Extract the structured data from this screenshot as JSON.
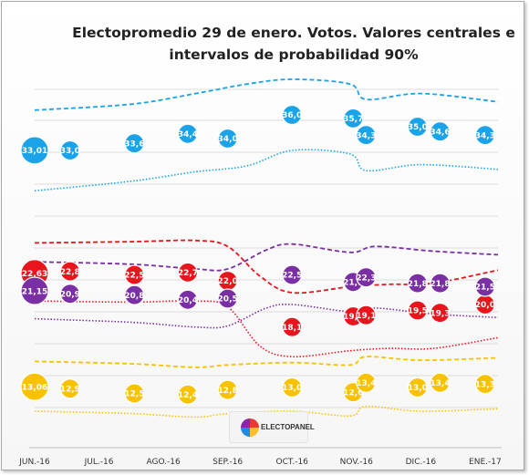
{
  "chart_data": {
    "type": "line",
    "title": "Electopromedio 29 de enero. Votos. Valores centrales e intervalos de probabilidad 90%",
    "xlabel": "",
    "ylabel": "",
    "ylim": [
      8,
      40
    ],
    "grid": true,
    "x_ticks": [
      "JUN.-16",
      "JUL.-16",
      "AGO.-16",
      "SEP.-16",
      "OCT.-16",
      "NOV.-16",
      "DIC.-16",
      "ENE.-17"
    ],
    "x_range": [
      0,
      7.2
    ],
    "series": [
      {
        "color": "#1aa3e8",
        "points": [
          {
            "x": 0.0,
            "y": 33.01,
            "label": "33,01"
          },
          {
            "x": 0.55,
            "y": 33.0,
            "label": "33,0"
          },
          {
            "x": 1.55,
            "y": 33.6,
            "label": "33,6"
          },
          {
            "x": 2.38,
            "y": 34.4,
            "label": "34,4"
          },
          {
            "x": 3.0,
            "y": 34.0,
            "label": "34,0"
          },
          {
            "x": 4.0,
            "y": 36.0,
            "label": "36,0"
          },
          {
            "x": 4.95,
            "y": 35.7,
            "label": "35,7"
          },
          {
            "x": 5.15,
            "y": 34.3,
            "label": "34,3"
          },
          {
            "x": 5.95,
            "y": 35.0,
            "label": "35,0"
          },
          {
            "x": 6.3,
            "y": 34.6,
            "label": "34,6"
          },
          {
            "x": 7.0,
            "y": 34.3,
            "label": "34,3"
          }
        ],
        "upper": [
          [
            0,
            36.4
          ],
          [
            1.5,
            36.9
          ],
          [
            2.5,
            37.8
          ],
          [
            3.3,
            38.6
          ],
          [
            4.0,
            39.0
          ],
          [
            4.9,
            38.6
          ],
          [
            5.15,
            37.3
          ],
          [
            6.0,
            37.8
          ],
          [
            7.2,
            37.1
          ]
        ],
        "lower": [
          [
            0,
            29.6
          ],
          [
            1.5,
            30.4
          ],
          [
            2.5,
            31.2
          ],
          [
            3.3,
            31.7
          ],
          [
            4.0,
            33.0
          ],
          [
            4.9,
            32.7
          ],
          [
            5.15,
            31.3
          ],
          [
            6.0,
            31.8
          ],
          [
            7.2,
            31.4
          ]
        ]
      },
      {
        "color": "#e8161c",
        "points": [
          {
            "x": 0.0,
            "y": 22.63,
            "label": "22,63"
          },
          {
            "x": 0.55,
            "y": 22.8,
            "label": "22,8"
          },
          {
            "x": 1.55,
            "y": 22.5,
            "label": "22,5"
          },
          {
            "x": 2.38,
            "y": 22.7,
            "label": "22,7"
          },
          {
            "x": 3.0,
            "y": 22.0,
            "label": "22,0"
          },
          {
            "x": 4.0,
            "y": 18.1,
            "label": "18,1"
          },
          {
            "x": 4.95,
            "y": 19.0,
            "label": "19,0"
          },
          {
            "x": 5.15,
            "y": 19.1,
            "label": "19,1"
          },
          {
            "x": 5.95,
            "y": 19.5,
            "label": "19,5"
          },
          {
            "x": 6.3,
            "y": 19.3,
            "label": "19,3"
          },
          {
            "x": 7.0,
            "y": 20.0,
            "label": "20,0"
          }
        ],
        "upper": [
          [
            0,
            25.2
          ],
          [
            1.5,
            25.3
          ],
          [
            2.5,
            25.4
          ],
          [
            3.0,
            24.9
          ],
          [
            3.5,
            22.4
          ],
          [
            4.0,
            21.0
          ],
          [
            4.9,
            21.5
          ],
          [
            5.5,
            21.7
          ],
          [
            6.2,
            21.8
          ],
          [
            7.2,
            22.9
          ]
        ],
        "lower": [
          [
            0,
            20.3
          ],
          [
            1.5,
            20.2
          ],
          [
            2.5,
            20.3
          ],
          [
            3.0,
            19.8
          ],
          [
            3.5,
            16.5
          ],
          [
            4.0,
            15.6
          ],
          [
            4.9,
            16.1
          ],
          [
            5.5,
            16.3
          ],
          [
            6.2,
            16.3
          ],
          [
            7.2,
            17.2
          ]
        ]
      },
      {
        "color": "#7b2fa5",
        "points": [
          {
            "x": 0.0,
            "y": 21.15,
            "label": "21,15"
          },
          {
            "x": 0.55,
            "y": 20.9,
            "label": "20,9"
          },
          {
            "x": 1.55,
            "y": 20.8,
            "label": "20,8"
          },
          {
            "x": 2.38,
            "y": 20.4,
            "label": "20,4"
          },
          {
            "x": 3.0,
            "y": 20.5,
            "label": "20,5"
          },
          {
            "x": 4.0,
            "y": 22.5,
            "label": "22,5"
          },
          {
            "x": 4.95,
            "y": 21.9,
            "label": "21,9"
          },
          {
            "x": 5.15,
            "y": 22.3,
            "label": "22,3"
          },
          {
            "x": 5.95,
            "y": 21.8,
            "label": "21,8"
          },
          {
            "x": 6.3,
            "y": 21.8,
            "label": "21,8"
          },
          {
            "x": 7.0,
            "y": 21.5,
            "label": "21,5"
          }
        ],
        "upper": [
          [
            0,
            23.6
          ],
          [
            1.5,
            23.4
          ],
          [
            2.5,
            23.0
          ],
          [
            3.0,
            23.0
          ],
          [
            3.6,
            24.6
          ],
          [
            4.0,
            25.1
          ],
          [
            4.9,
            24.4
          ],
          [
            5.3,
            24.9
          ],
          [
            6.2,
            24.5
          ],
          [
            7.2,
            24.2
          ]
        ],
        "lower": [
          [
            0,
            18.8
          ],
          [
            1.5,
            18.5
          ],
          [
            2.5,
            18.1
          ],
          [
            3.0,
            18.2
          ],
          [
            3.6,
            19.7
          ],
          [
            4.0,
            20.0
          ],
          [
            4.9,
            19.4
          ],
          [
            5.3,
            19.7
          ],
          [
            6.2,
            19.2
          ],
          [
            7.2,
            18.9
          ]
        ]
      },
      {
        "color": "#f8c200",
        "points": [
          {
            "x": 0.0,
            "y": 13.06,
            "label": "13,06"
          },
          {
            "x": 0.55,
            "y": 12.9,
            "label": "12,9"
          },
          {
            "x": 1.55,
            "y": 12.5,
            "label": "12,5"
          },
          {
            "x": 2.38,
            "y": 12.4,
            "label": "12,4"
          },
          {
            "x": 3.0,
            "y": 12.8,
            "label": "12,8"
          },
          {
            "x": 4.0,
            "y": 13.0,
            "label": "13,0"
          },
          {
            "x": 4.95,
            "y": 12.6,
            "label": "12,6"
          },
          {
            "x": 5.15,
            "y": 13.4,
            "label": "13,4"
          },
          {
            "x": 5.95,
            "y": 13.0,
            "label": "13,0"
          },
          {
            "x": 6.3,
            "y": 13.4,
            "label": "13,4"
          },
          {
            "x": 7.0,
            "y": 13.3,
            "label": "13,3"
          }
        ],
        "upper": [
          [
            0,
            15.2
          ],
          [
            1.5,
            15.0
          ],
          [
            2.5,
            14.7
          ],
          [
            3.0,
            14.9
          ],
          [
            4.0,
            15.1
          ],
          [
            4.9,
            14.9
          ],
          [
            5.15,
            15.6
          ],
          [
            6.0,
            15.3
          ],
          [
            7.2,
            15.5
          ]
        ],
        "lower": [
          [
            0,
            11.0
          ],
          [
            1.5,
            10.8
          ],
          [
            2.5,
            10.5
          ],
          [
            3.0,
            10.8
          ],
          [
            4.0,
            11.0
          ],
          [
            4.9,
            10.6
          ],
          [
            5.15,
            11.4
          ],
          [
            6.0,
            11.0
          ],
          [
            7.2,
            11.2
          ]
        ]
      }
    ],
    "logo_text": "ELECTOPANEL"
  }
}
